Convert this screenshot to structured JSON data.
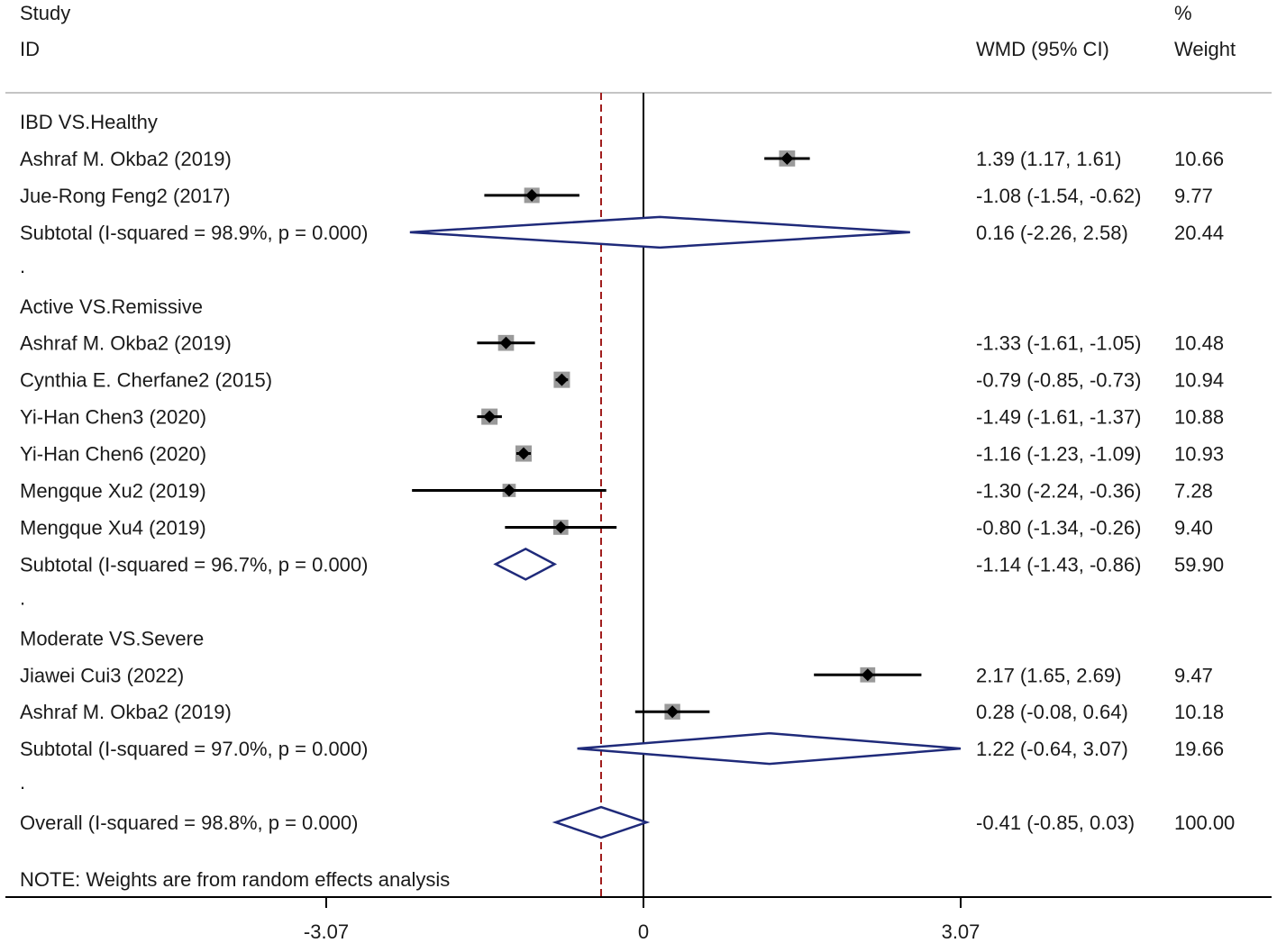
{
  "chart_data": {
    "type": "forest",
    "header": {
      "study_line1": "Study",
      "study_line2": "ID",
      "effect": "WMD (95% CI)",
      "weight_line1": "%",
      "weight_line2": "Weight"
    },
    "x_ticks": [
      {
        "value": -3.07,
        "label": "-3.07"
      },
      {
        "value": 0,
        "label": "0"
      },
      {
        "value": 3.07,
        "label": "3.07"
      }
    ],
    "overall_reference": -0.41,
    "colors": {
      "diamond": "#1f2a7a",
      "reference_line": "#a01c1c",
      "square": "#9a9a9a",
      "text": "#1a1a1a",
      "separator": "#c4c4c4"
    },
    "groups": [
      {
        "label": "IBD VS.Healthy",
        "studies": [
          {
            "label": "Ashraf M. Okba2 (2019)",
            "est": 1.39,
            "lo": 1.17,
            "hi": 1.61,
            "ci_text": "1.39 (1.17, 1.61)",
            "weight": "10.66"
          },
          {
            "label": "Jue-Rong Feng2 (2017)",
            "est": -1.08,
            "lo": -1.54,
            "hi": -0.62,
            "ci_text": "-1.08 (-1.54, -0.62)",
            "weight": "9.77"
          }
        ],
        "subtotal": {
          "label": "Subtotal  (I-squared = 98.9%, p = 0.000)",
          "est": 0.16,
          "lo": -2.26,
          "hi": 2.58,
          "ci_text": "0.16 (-2.26, 2.58)",
          "weight": "20.44"
        }
      },
      {
        "label": "Active VS.Remissive",
        "studies": [
          {
            "label": "Ashraf M. Okba2 (2019)",
            "est": -1.33,
            "lo": -1.61,
            "hi": -1.05,
            "ci_text": "-1.33 (-1.61, -1.05)",
            "weight": "10.48"
          },
          {
            "label": "Cynthia E. Cherfane2 (2015)",
            "est": -0.79,
            "lo": -0.85,
            "hi": -0.73,
            "ci_text": "-0.79 (-0.85, -0.73)",
            "weight": "10.94"
          },
          {
            "label": "Yi-Han Chen3 (2020)",
            "est": -1.49,
            "lo": -1.61,
            "hi": -1.37,
            "ci_text": "-1.49 (-1.61, -1.37)",
            "weight": "10.88"
          },
          {
            "label": "Yi-Han Chen6 (2020)",
            "est": -1.16,
            "lo": -1.23,
            "hi": -1.09,
            "ci_text": "-1.16 (-1.23, -1.09)",
            "weight": "10.93"
          },
          {
            "label": "Mengque Xu2 (2019)",
            "est": -1.3,
            "lo": -2.24,
            "hi": -0.36,
            "ci_text": "-1.30 (-2.24, -0.36)",
            "weight": "7.28"
          },
          {
            "label": "Mengque Xu4 (2019)",
            "est": -0.8,
            "lo": -1.34,
            "hi": -0.26,
            "ci_text": "-0.80 (-1.34, -0.26)",
            "weight": "9.40"
          }
        ],
        "subtotal": {
          "label": "Subtotal  (I-squared = 96.7%, p = 0.000)",
          "est": -1.14,
          "lo": -1.43,
          "hi": -0.86,
          "ci_text": "-1.14 (-1.43, -0.86)",
          "weight": "59.90"
        }
      },
      {
        "label": "Moderate VS.Severe",
        "studies": [
          {
            "label": "Jiawei Cui3 (2022)",
            "est": 2.17,
            "lo": 1.65,
            "hi": 2.69,
            "ci_text": "2.17 (1.65, 2.69)",
            "weight": "9.47"
          },
          {
            "label": "Ashraf M. Okba2 (2019)",
            "est": 0.28,
            "lo": -0.08,
            "hi": 0.64,
            "ci_text": "0.28 (-0.08, 0.64)",
            "weight": "10.18"
          }
        ],
        "subtotal": {
          "label": "Subtotal  (I-squared = 97.0%, p = 0.000)",
          "est": 1.22,
          "lo": -0.64,
          "hi": 3.07,
          "ci_text": "1.22 (-0.64, 3.07)",
          "weight": "19.66"
        }
      }
    ],
    "group_spacer": ".",
    "overall": {
      "label": "Overall  (I-squared = 98.8%, p = 0.000)",
      "est": -0.41,
      "lo": -0.85,
      "hi": 0.03,
      "ci_text": "-0.41 (-0.85, 0.03)",
      "weight": "100.00"
    },
    "note": "NOTE: Weights are from random effects analysis"
  }
}
